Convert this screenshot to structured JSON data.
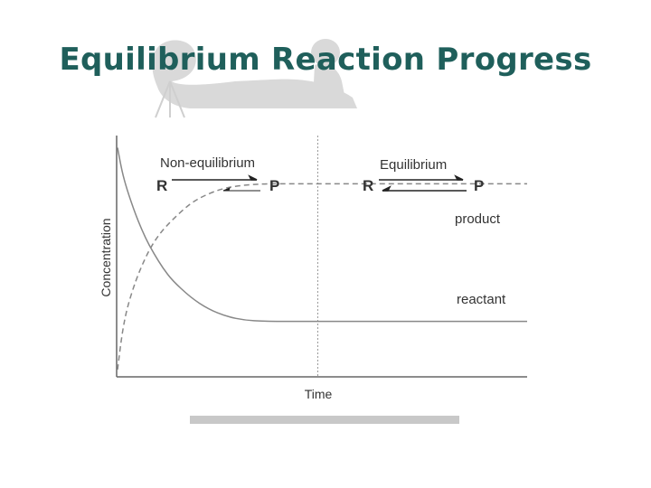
{
  "slide": {
    "title": "Equilibrium Reaction Progress"
  },
  "chart_data": {
    "type": "line",
    "xlabel": "Time",
    "ylabel": "Concentration",
    "x": [
      0,
      0.05,
      0.1,
      0.2,
      0.3,
      0.4,
      0.5,
      0.6,
      0.8,
      1.0,
      1.2,
      1.4,
      1.6,
      2.0,
      2.5,
      3.0,
      3.5,
      4.0,
      4.5
    ],
    "series": [
      {
        "name": "product",
        "style": "dashed",
        "values": [
          3,
          18,
          28,
          40,
          49,
          56,
          61,
          65,
          72,
          76,
          78.5,
          79.5,
          80,
          80,
          80,
          80,
          80,
          80,
          80
        ]
      },
      {
        "name": "reactant",
        "style": "solid",
        "values": [
          95,
          85,
          78,
          67,
          58,
          51,
          45,
          40,
          33,
          28,
          25,
          23.5,
          23,
          23,
          23,
          23,
          23,
          23,
          23
        ]
      }
    ],
    "xlim": [
      0,
      4.5
    ],
    "ylim": [
      0,
      100
    ],
    "equilibrium_time": 2.2,
    "grid": false,
    "legend": "none",
    "annotations": {
      "non_equilibrium": {
        "label": "Non-equilibrium",
        "reactant": "R",
        "product": "P"
      },
      "equilibrium": {
        "label": "Equilibrium",
        "reactant": "R",
        "product": "P"
      }
    },
    "colors": {
      "line": "#888888",
      "axis": "#666666",
      "arrow": "#222222",
      "title": "#1f5f5b"
    }
  }
}
